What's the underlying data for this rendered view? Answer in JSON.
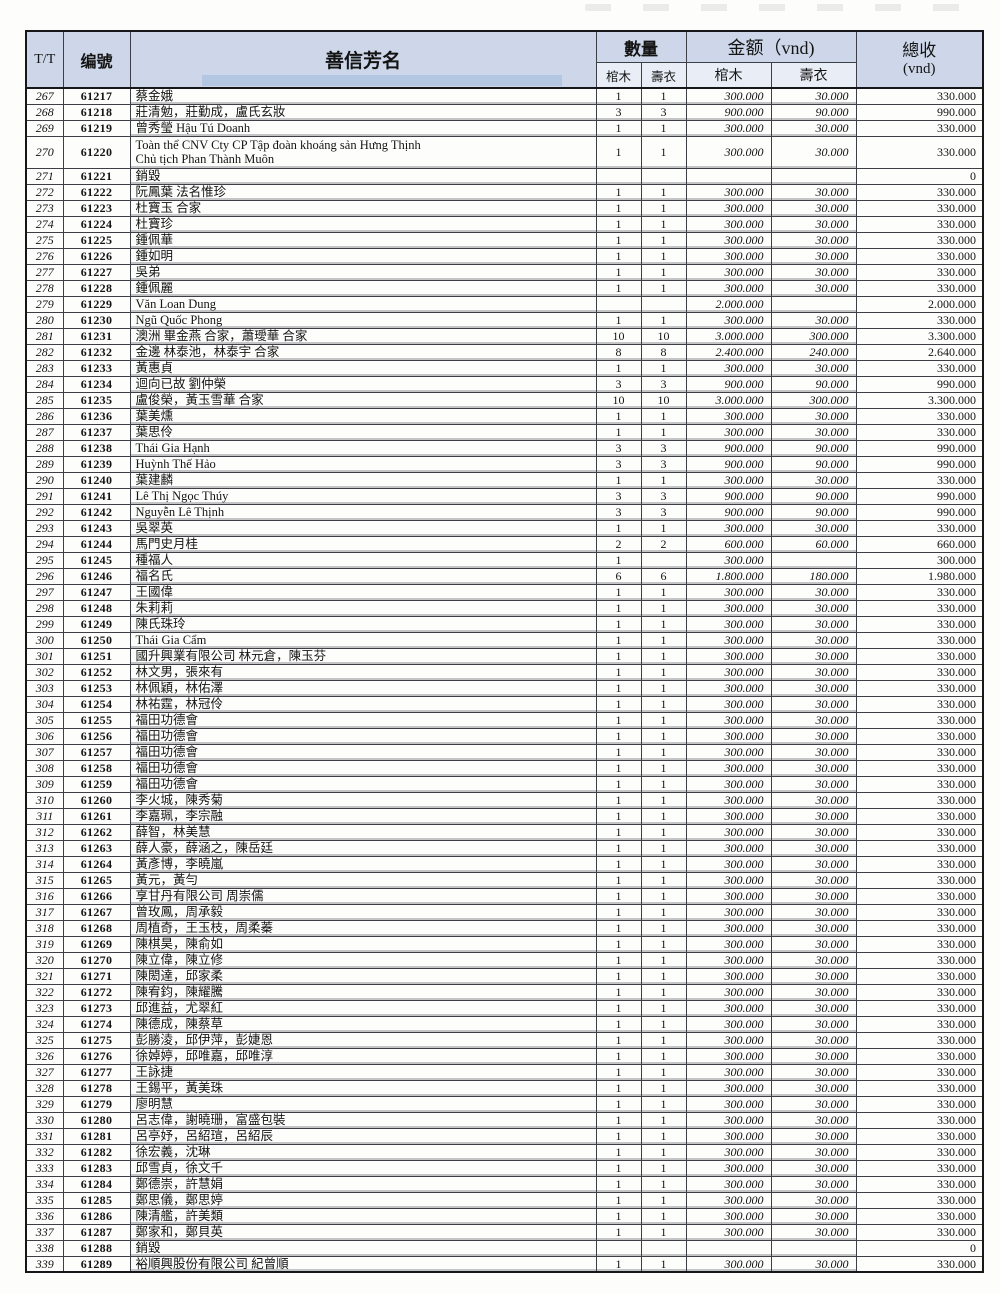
{
  "table": {
    "columns": {
      "tt": "T/T",
      "id": "编號",
      "name": "善信芳名",
      "qty_group": "數量",
      "amount_group": "金额（vnd)",
      "coffin": "棺木",
      "shroud": "壽衣",
      "total_line1": "總收",
      "total_line2": "(vnd)"
    },
    "accent_colors": {
      "header_bg": "#cdd7e9",
      "header_highlight": "#b3c6e2",
      "border": "#15171a"
    }
  },
  "rows": [
    {
      "tt": "267",
      "id": "61217",
      "name": "蔡金娥",
      "q1": "1",
      "q2": "1",
      "a1": "300.000",
      "a2": "30.000",
      "t": "330.000"
    },
    {
      "tt": "268",
      "id": "61218",
      "name": "莊清勉，莊勤成，盧氏玄妝",
      "q1": "3",
      "q2": "3",
      "a1": "900.000",
      "a2": "90.000",
      "t": "990.000"
    },
    {
      "tt": "269",
      "id": "61219",
      "name": "曾秀瑩 Hậu Tú Doanh",
      "q1": "1",
      "q2": "1",
      "a1": "300.000",
      "a2": "30.000",
      "t": "330.000"
    },
    {
      "tt": "270",
      "id": "61220",
      "name": "Toàn thể CNV Cty CP Tập đoàn khoáng sản Hưng Thịnh",
      "name2": "Chủ tịch Phan Thành Muôn",
      "q1": "1",
      "q2": "1",
      "a1": "300.000",
      "a2": "30.000",
      "t": "330.000"
    },
    {
      "tt": "271",
      "id": "61221",
      "name": "銷毀",
      "q1": "",
      "q2": "",
      "a1": "",
      "a2": "",
      "t": "0"
    },
    {
      "tt": "272",
      "id": "61222",
      "name": "阮鳳葉 法名惟珍",
      "q1": "1",
      "q2": "1",
      "a1": "300.000",
      "a2": "30.000",
      "t": "330.000"
    },
    {
      "tt": "273",
      "id": "61223",
      "name": "杜寶玉 合家",
      "q1": "1",
      "q2": "1",
      "a1": "300.000",
      "a2": "30.000",
      "t": "330.000"
    },
    {
      "tt": "274",
      "id": "61224",
      "name": "杜寶珍",
      "q1": "1",
      "q2": "1",
      "a1": "300.000",
      "a2": "30.000",
      "t": "330.000"
    },
    {
      "tt": "275",
      "id": "61225",
      "name": "鍾佩華",
      "q1": "1",
      "q2": "1",
      "a1": "300.000",
      "a2": "30.000",
      "t": "330.000"
    },
    {
      "tt": "276",
      "id": "61226",
      "name": "鍾如明",
      "q1": "1",
      "q2": "1",
      "a1": "300.000",
      "a2": "30.000",
      "t": "330.000"
    },
    {
      "tt": "277",
      "id": "61227",
      "name": "吳弟",
      "q1": "1",
      "q2": "1",
      "a1": "300.000",
      "a2": "30.000",
      "t": "330.000"
    },
    {
      "tt": "278",
      "id": "61228",
      "name": "鍾佩麗",
      "q1": "1",
      "q2": "1",
      "a1": "300.000",
      "a2": "30.000",
      "t": "330.000"
    },
    {
      "tt": "279",
      "id": "61229",
      "name": "Văn Loan Dung",
      "q1": "",
      "q2": "",
      "a1": "2.000.000",
      "a2": "",
      "t": "2.000.000"
    },
    {
      "tt": "280",
      "id": "61230",
      "name": "Ngũ Quốc Phong",
      "q1": "1",
      "q2": "1",
      "a1": "300.000",
      "a2": "30.000",
      "t": "330.000"
    },
    {
      "tt": "281",
      "id": "61231",
      "name": "澳洲 畢金燕 合家，蕭璦華 合家",
      "q1": "10",
      "q2": "10",
      "a1": "3.000.000",
      "a2": "300.000",
      "t": "3.300.000"
    },
    {
      "tt": "282",
      "id": "61232",
      "name": "金邊 林泰池，林泰宇 合家",
      "q1": "8",
      "q2": "8",
      "a1": "2.400.000",
      "a2": "240.000",
      "t": "2.640.000"
    },
    {
      "tt": "283",
      "id": "61233",
      "name": "黃惠貞",
      "q1": "1",
      "q2": "1",
      "a1": "300.000",
      "a2": "30.000",
      "t": "330.000"
    },
    {
      "tt": "284",
      "id": "61234",
      "name": "迴向已故 劉仲榮",
      "q1": "3",
      "q2": "3",
      "a1": "900.000",
      "a2": "90.000",
      "t": "990.000"
    },
    {
      "tt": "285",
      "id": "61235",
      "name": "盧俊榮，黃玉雪華 合家",
      "q1": "10",
      "q2": "10",
      "a1": "3.000.000",
      "a2": "300.000",
      "t": "3.300.000"
    },
    {
      "tt": "286",
      "id": "61236",
      "name": "葉美燻",
      "q1": "1",
      "q2": "1",
      "a1": "300.000",
      "a2": "30.000",
      "t": "330.000"
    },
    {
      "tt": "287",
      "id": "61237",
      "name": "葉思伶",
      "q1": "1",
      "q2": "1",
      "a1": "300.000",
      "a2": "30.000",
      "t": "330.000"
    },
    {
      "tt": "288",
      "id": "61238",
      "name": "Thái Gia Hạnh",
      "q1": "3",
      "q2": "3",
      "a1": "900.000",
      "a2": "90.000",
      "t": "990.000"
    },
    {
      "tt": "289",
      "id": "61239",
      "name": "Huỳnh Thế Hảo",
      "q1": "3",
      "q2": "3",
      "a1": "900.000",
      "a2": "90.000",
      "t": "990.000"
    },
    {
      "tt": "290",
      "id": "61240",
      "name": "葉建麟",
      "q1": "1",
      "q2": "1",
      "a1": "300.000",
      "a2": "30.000",
      "t": "330.000"
    },
    {
      "tt": "291",
      "id": "61241",
      "name": "Lê Thị Ngọc Thúy",
      "q1": "3",
      "q2": "3",
      "a1": "900.000",
      "a2": "90.000",
      "t": "990.000"
    },
    {
      "tt": "292",
      "id": "61242",
      "name": "Nguyễn Lê Thịnh",
      "q1": "3",
      "q2": "3",
      "a1": "900.000",
      "a2": "90.000",
      "t": "990.000"
    },
    {
      "tt": "293",
      "id": "61243",
      "name": "吳翠英",
      "q1": "1",
      "q2": "1",
      "a1": "300.000",
      "a2": "30.000",
      "t": "330.000"
    },
    {
      "tt": "294",
      "id": "61244",
      "name": "馬門史月桂",
      "q1": "2",
      "q2": "2",
      "a1": "600.000",
      "a2": "60.000",
      "t": "660.000"
    },
    {
      "tt": "295",
      "id": "61245",
      "name": "種福人",
      "q1": "1",
      "q2": "",
      "a1": "300.000",
      "a2": "",
      "t": "300.000"
    },
    {
      "tt": "296",
      "id": "61246",
      "name": "福名氏",
      "q1": "6",
      "q2": "6",
      "a1": "1.800.000",
      "a2": "180.000",
      "t": "1.980.000"
    },
    {
      "tt": "297",
      "id": "61247",
      "name": "王國偉",
      "q1": "1",
      "q2": "1",
      "a1": "300.000",
      "a2": "30.000",
      "t": "330.000"
    },
    {
      "tt": "298",
      "id": "61248",
      "name": "朱莉莉",
      "q1": "1",
      "q2": "1",
      "a1": "300.000",
      "a2": "30.000",
      "t": "330.000"
    },
    {
      "tt": "299",
      "id": "61249",
      "name": "陳氏珠玲",
      "q1": "1",
      "q2": "1",
      "a1": "300.000",
      "a2": "30.000",
      "t": "330.000"
    },
    {
      "tt": "300",
      "id": "61250",
      "name": "Thái Gia Cẩm",
      "q1": "1",
      "q2": "1",
      "a1": "300.000",
      "a2": "30.000",
      "t": "330.000"
    },
    {
      "tt": "301",
      "id": "61251",
      "name": "國升興業有限公司 林元倉，陳玉芬",
      "q1": "1",
      "q2": "1",
      "a1": "300.000",
      "a2": "30.000",
      "t": "330.000"
    },
    {
      "tt": "302",
      "id": "61252",
      "name": "林文男，張來有",
      "q1": "1",
      "q2": "1",
      "a1": "300.000",
      "a2": "30.000",
      "t": "330.000"
    },
    {
      "tt": "303",
      "id": "61253",
      "name": "林佩穎，林佑澤",
      "q1": "1",
      "q2": "1",
      "a1": "300.000",
      "a2": "30.000",
      "t": "330.000"
    },
    {
      "tt": "304",
      "id": "61254",
      "name": "林祐霆，林冠伶",
      "q1": "1",
      "q2": "1",
      "a1": "300.000",
      "a2": "30.000",
      "t": "330.000"
    },
    {
      "tt": "305",
      "id": "61255",
      "name": "福田功德會",
      "q1": "1",
      "q2": "1",
      "a1": "300.000",
      "a2": "30.000",
      "t": "330.000"
    },
    {
      "tt": "306",
      "id": "61256",
      "name": "福田功德會",
      "q1": "1",
      "q2": "1",
      "a1": "300.000",
      "a2": "30.000",
      "t": "330.000"
    },
    {
      "tt": "307",
      "id": "61257",
      "name": "福田功德會",
      "q1": "1",
      "q2": "1",
      "a1": "300.000",
      "a2": "30.000",
      "t": "330.000"
    },
    {
      "tt": "308",
      "id": "61258",
      "name": "福田功德會",
      "q1": "1",
      "q2": "1",
      "a1": "300.000",
      "a2": "30.000",
      "t": "330.000"
    },
    {
      "tt": "309",
      "id": "61259",
      "name": "福田功德會",
      "q1": "1",
      "q2": "1",
      "a1": "300.000",
      "a2": "30.000",
      "t": "330.000"
    },
    {
      "tt": "310",
      "id": "61260",
      "name": "李火城，陳秀菊",
      "q1": "1",
      "q2": "1",
      "a1": "300.000",
      "a2": "30.000",
      "t": "330.000"
    },
    {
      "tt": "311",
      "id": "61261",
      "name": "李嘉珮，李宗融",
      "q1": "1",
      "q2": "1",
      "a1": "300.000",
      "a2": "30.000",
      "t": "330.000"
    },
    {
      "tt": "312",
      "id": "61262",
      "name": "薛智，林美慧",
      "q1": "1",
      "q2": "1",
      "a1": "300.000",
      "a2": "30.000",
      "t": "330.000"
    },
    {
      "tt": "313",
      "id": "61263",
      "name": "薛人豪，薛涵之，陳岳廷",
      "q1": "1",
      "q2": "1",
      "a1": "300.000",
      "a2": "30.000",
      "t": "330.000"
    },
    {
      "tt": "314",
      "id": "61264",
      "name": "黃彥博，李曉嵐",
      "q1": "1",
      "q2": "1",
      "a1": "300.000",
      "a2": "30.000",
      "t": "330.000"
    },
    {
      "tt": "315",
      "id": "61265",
      "name": "黃元，黃勻",
      "q1": "1",
      "q2": "1",
      "a1": "300.000",
      "a2": "30.000",
      "t": "330.000"
    },
    {
      "tt": "316",
      "id": "61266",
      "name": "享甘丹有限公司 周崇儒",
      "q1": "1",
      "q2": "1",
      "a1": "300.000",
      "a2": "30.000",
      "t": "330.000"
    },
    {
      "tt": "317",
      "id": "61267",
      "name": "曾玫鳳，周承毅",
      "q1": "1",
      "q2": "1",
      "a1": "300.000",
      "a2": "30.000",
      "t": "330.000"
    },
    {
      "tt": "318",
      "id": "61268",
      "name": "周植奇，王玉枝，周柔蓁",
      "q1": "1",
      "q2": "1",
      "a1": "300.000",
      "a2": "30.000",
      "t": "330.000"
    },
    {
      "tt": "319",
      "id": "61269",
      "name": "陳棋昊，陳俞如",
      "q1": "1",
      "q2": "1",
      "a1": "300.000",
      "a2": "30.000",
      "t": "330.000"
    },
    {
      "tt": "320",
      "id": "61270",
      "name": "陳立偉，陳立修",
      "q1": "1",
      "q2": "1",
      "a1": "300.000",
      "a2": "30.000",
      "t": "330.000"
    },
    {
      "tt": "321",
      "id": "61271",
      "name": "陳閎達，邱家柔",
      "q1": "1",
      "q2": "1",
      "a1": "300.000",
      "a2": "30.000",
      "t": "330.000"
    },
    {
      "tt": "322",
      "id": "61272",
      "name": "陳宥鈞，陳耀騰",
      "q1": "1",
      "q2": "1",
      "a1": "300.000",
      "a2": "30.000",
      "t": "330.000"
    },
    {
      "tt": "323",
      "id": "61273",
      "name": "邱進益，尤翠紅",
      "q1": "1",
      "q2": "1",
      "a1": "300.000",
      "a2": "30.000",
      "t": "330.000"
    },
    {
      "tt": "324",
      "id": "61274",
      "name": "陳德成，陳蔡草",
      "q1": "1",
      "q2": "1",
      "a1": "300.000",
      "a2": "30.000",
      "t": "330.000"
    },
    {
      "tt": "325",
      "id": "61275",
      "name": "彭勝淩，邱伊萍，彭婕恩",
      "q1": "1",
      "q2": "1",
      "a1": "300.000",
      "a2": "30.000",
      "t": "330.000"
    },
    {
      "tt": "326",
      "id": "61276",
      "name": "徐婥婷，邱唯嘉，邱唯淳",
      "q1": "1",
      "q2": "1",
      "a1": "300.000",
      "a2": "30.000",
      "t": "330.000"
    },
    {
      "tt": "327",
      "id": "61277",
      "name": "王詠捷",
      "q1": "1",
      "q2": "1",
      "a1": "300.000",
      "a2": "30.000",
      "t": "330.000"
    },
    {
      "tt": "328",
      "id": "61278",
      "name": "王錫平，黃美珠",
      "q1": "1",
      "q2": "1",
      "a1": "300.000",
      "a2": "30.000",
      "t": "330.000"
    },
    {
      "tt": "329",
      "id": "61279",
      "name": "廖明慧",
      "q1": "1",
      "q2": "1",
      "a1": "300.000",
      "a2": "30.000",
      "t": "330.000"
    },
    {
      "tt": "330",
      "id": "61280",
      "name": "呂志偉，謝曉珊，富盛包裝",
      "q1": "1",
      "q2": "1",
      "a1": "300.000",
      "a2": "30.000",
      "t": "330.000"
    },
    {
      "tt": "331",
      "id": "61281",
      "name": "呂亭妤，呂紹瑄，呂紹辰",
      "q1": "1",
      "q2": "1",
      "a1": "300.000",
      "a2": "30.000",
      "t": "330.000"
    },
    {
      "tt": "332",
      "id": "61282",
      "name": "徐宏義，沈琳",
      "q1": "1",
      "q2": "1",
      "a1": "300.000",
      "a2": "30.000",
      "t": "330.000"
    },
    {
      "tt": "333",
      "id": "61283",
      "name": "邱雪貞，徐文千",
      "q1": "1",
      "q2": "1",
      "a1": "300.000",
      "a2": "30.000",
      "t": "330.000"
    },
    {
      "tt": "334",
      "id": "61284",
      "name": "鄭德崇，許慧娟",
      "q1": "1",
      "q2": "1",
      "a1": "300.000",
      "a2": "30.000",
      "t": "330.000"
    },
    {
      "tt": "335",
      "id": "61285",
      "name": "鄭思儀，鄭思婷",
      "q1": "1",
      "q2": "1",
      "a1": "300.000",
      "a2": "30.000",
      "t": "330.000"
    },
    {
      "tt": "336",
      "id": "61286",
      "name": "陳清艦，許美類",
      "q1": "1",
      "q2": "1",
      "a1": "300.000",
      "a2": "30.000",
      "t": "330.000"
    },
    {
      "tt": "337",
      "id": "61287",
      "name": "鄭家和，鄭貝英",
      "q1": "1",
      "q2": "1",
      "a1": "300.000",
      "a2": "30.000",
      "t": "330.000"
    },
    {
      "tt": "338",
      "id": "61288",
      "name": "銷毀",
      "q1": "",
      "q2": "",
      "a1": "",
      "a2": "",
      "t": "0"
    },
    {
      "tt": "339",
      "id": "61289",
      "name": "裕順興股份有限公司 紀曾順",
      "q1": "1",
      "q2": "1",
      "a1": "300.000",
      "a2": "30.000",
      "t": "330.000"
    }
  ]
}
